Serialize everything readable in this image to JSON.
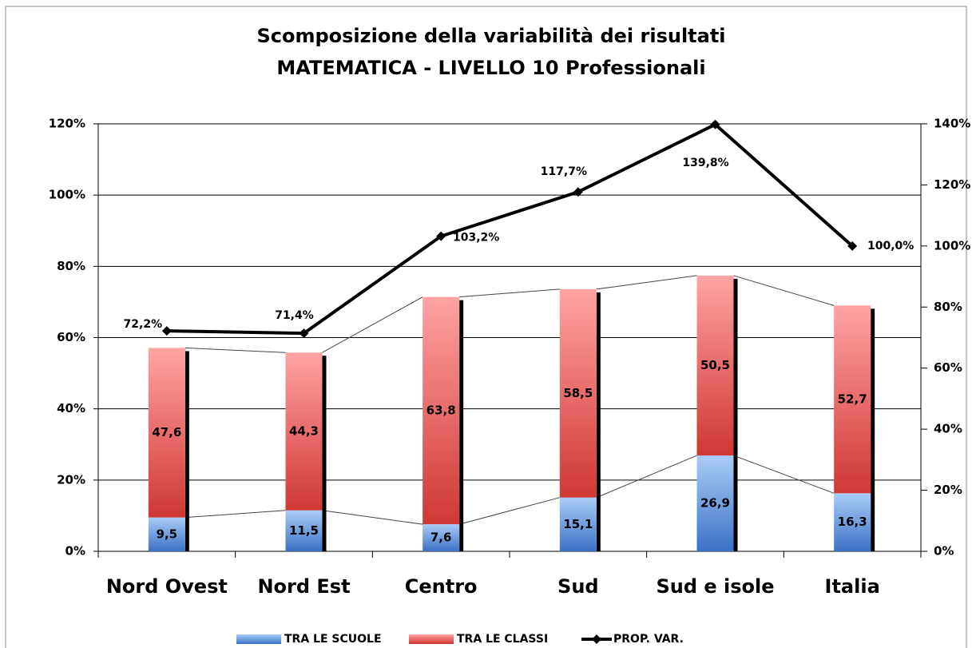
{
  "chart_data": {
    "type": "bar",
    "title": "Scomposizione della variabilità dei risultati",
    "subtitle": "MATEMATICA - LIVELLO 10 Professionali",
    "categories": [
      "Nord Ovest",
      "Nord Est",
      "Centro",
      "Sud",
      "Sud e isole",
      "Italia"
    ],
    "series": [
      {
        "name": "TRA LE SCUOLE",
        "color": "#4f81bd",
        "values": [
          9.5,
          11.5,
          7.6,
          15.1,
          26.9,
          16.3
        ],
        "value_labels": [
          "9,5",
          "11,5",
          "7,6",
          "15,1",
          "26,9",
          "16,3"
        ]
      },
      {
        "name": "TRA LE CLASSI",
        "color": "#c0504d",
        "values": [
          47.6,
          44.3,
          63.8,
          58.5,
          50.5,
          52.7
        ],
        "value_labels": [
          "47,6",
          "44,3",
          "63,8",
          "58,5",
          "50,5",
          "52,7"
        ]
      },
      {
        "name": "PROP. VAR.",
        "color": "#000000",
        "type": "line",
        "axis": "y2",
        "values": [
          72.2,
          71.4,
          103.2,
          117.7,
          139.8,
          100.0
        ],
        "value_labels": [
          "72,2%",
          "71,4%",
          "103,2%",
          "117,7%",
          "139,8%",
          "100,0%"
        ]
      }
    ],
    "stacked": true,
    "ylim": [
      0,
      120
    ],
    "yticks": [
      {
        "value": 0,
        "label": "0%"
      },
      {
        "value": 20,
        "label": "20%"
      },
      {
        "value": 40,
        "label": "40%"
      },
      {
        "value": 60,
        "label": "60%"
      },
      {
        "value": 80,
        "label": "80%"
      },
      {
        "value": 100,
        "label": "100%"
      },
      {
        "value": 120,
        "label": "120%"
      }
    ],
    "y2lim": [
      0,
      140
    ],
    "y2ticks": [
      {
        "value": 0,
        "label": "0%"
      },
      {
        "value": 20,
        "label": "20%"
      },
      {
        "value": 40,
        "label": "40%"
      },
      {
        "value": 60,
        "label": "60%"
      },
      {
        "value": 80,
        "label": "80%"
      },
      {
        "value": 100,
        "label": "100%"
      },
      {
        "value": 120,
        "label": "120%"
      },
      {
        "value": 140,
        "label": "140%"
      }
    ],
    "grid": true,
    "legend": "bottom"
  }
}
